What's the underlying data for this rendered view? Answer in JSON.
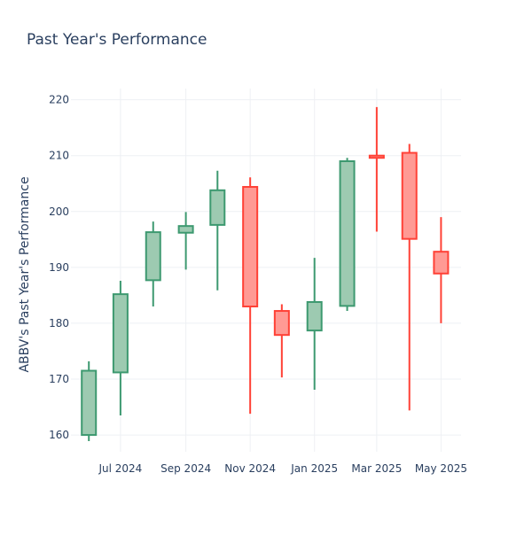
{
  "chart_data": {
    "type": "candlestick",
    "title": "Past Year's Performance",
    "xlabel": "",
    "ylabel": "ABBV's Past Year's Performance",
    "ylim": [
      157,
      222
    ],
    "y_ticks": [
      160,
      170,
      180,
      190,
      200,
      210,
      220
    ],
    "x_ticks": [
      {
        "date": "2024-07-01",
        "label": "Jul 2024"
      },
      {
        "date": "2024-09-01",
        "label": "Sep 2024"
      },
      {
        "date": "2024-11-01",
        "label": "Nov 2024"
      },
      {
        "date": "2025-01-01",
        "label": "Jan 2025"
      },
      {
        "date": "2025-03-01",
        "label": "Mar 2025"
      },
      {
        "date": "2025-05-01",
        "label": "May 2025"
      }
    ],
    "x_range": [
      "2024-05-15",
      "2025-05-20"
    ],
    "grid": true,
    "legend": "none",
    "colors": {
      "up_fill": "#9dcab1",
      "up_line": "#3d9970",
      "down_fill": "#ff9a94",
      "down_line": "#ff4136",
      "grid": "#eef0f4",
      "text": "#2a3f5f"
    },
    "candles": [
      {
        "date": "2024-06-01",
        "open": 160.0,
        "high": 173.2,
        "low": 158.9,
        "close": 171.5
      },
      {
        "date": "2024-07-01",
        "open": 171.2,
        "high": 187.6,
        "low": 163.5,
        "close": 185.2
      },
      {
        "date": "2024-08-01",
        "open": 187.7,
        "high": 198.2,
        "low": 183.0,
        "close": 196.3
      },
      {
        "date": "2024-09-01",
        "open": 196.2,
        "high": 199.9,
        "low": 189.6,
        "close": 197.4
      },
      {
        "date": "2024-10-01",
        "open": 197.6,
        "high": 207.3,
        "low": 185.9,
        "close": 203.8
      },
      {
        "date": "2024-11-01",
        "open": 204.4,
        "high": 206.1,
        "low": 163.8,
        "close": 183.0
      },
      {
        "date": "2024-12-01",
        "open": 182.2,
        "high": 183.4,
        "low": 170.3,
        "close": 177.9
      },
      {
        "date": "2025-01-01",
        "open": 178.7,
        "high": 191.7,
        "low": 168.1,
        "close": 183.8
      },
      {
        "date": "2025-02-01",
        "open": 183.1,
        "high": 209.6,
        "low": 182.2,
        "close": 209.0
      },
      {
        "date": "2025-03-01",
        "open": 210.0,
        "high": 218.7,
        "low": 196.4,
        "close": 209.6
      },
      {
        "date": "2025-04-01",
        "open": 210.5,
        "high": 212.1,
        "low": 164.4,
        "close": 195.1
      },
      {
        "date": "2025-05-01",
        "open": 192.8,
        "high": 199.0,
        "low": 180.0,
        "close": 188.9
      }
    ]
  }
}
